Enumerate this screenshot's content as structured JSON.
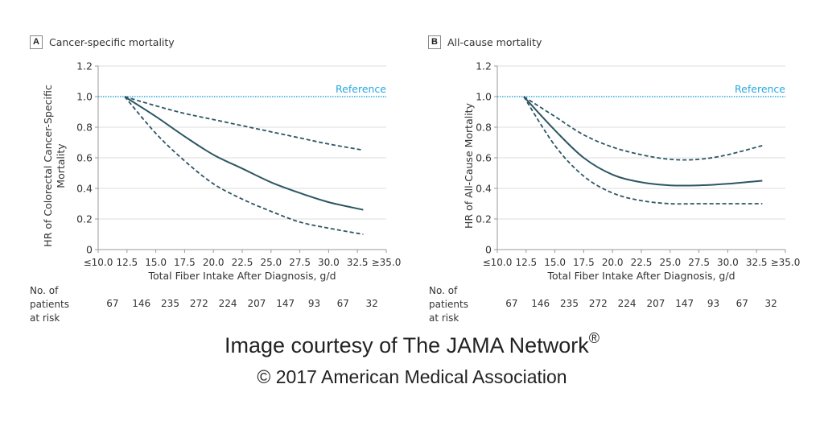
{
  "chart_data": [
    {
      "type": "line",
      "panel_letter": "A",
      "title": "Cancer-specific mortality",
      "xlabel": "Total Fiber Intake After Diagnosis, g/d",
      "ylabel": "HR of Colorectal Cancer-Specific Mortality",
      "ylabel_lines": [
        "HR of Colorectal Cancer-Specific",
        "Mortality"
      ],
      "xlim": [
        10,
        35
      ],
      "ylim": [
        0,
        1.2
      ],
      "grid": true,
      "x_ticks": [
        10,
        12.5,
        15,
        17.5,
        20,
        22.5,
        25,
        27.5,
        30,
        32.5,
        35
      ],
      "x_tick_labels": [
        "≤10.0",
        "12.5",
        "15.0",
        "17.5",
        "20.0",
        "22.5",
        "25.0",
        "27.5",
        "30.0",
        "32.5",
        "≥35.0"
      ],
      "y_ticks": [
        0,
        0.2,
        0.4,
        0.6,
        0.8,
        1.0,
        1.2
      ],
      "y_tick_labels": [
        "0",
        "0.2",
        "0.4",
        "0.6",
        "0.8",
        "1.0",
        "1.2"
      ],
      "reference": {
        "value": 1.0,
        "label": "Reference",
        "color": "#29a8e0"
      },
      "x": [
        12.3,
        15,
        17.5,
        20,
        22.5,
        25,
        27.5,
        30,
        33
      ],
      "series": [
        {
          "name": "HR",
          "style": "solid",
          "values": [
            1.0,
            0.87,
            0.74,
            0.62,
            0.53,
            0.44,
            0.37,
            0.31,
            0.26
          ]
        },
        {
          "name": "Upper 95% CI",
          "style": "dashed",
          "values": [
            1.0,
            0.94,
            0.89,
            0.85,
            0.81,
            0.77,
            0.73,
            0.69,
            0.65
          ]
        },
        {
          "name": "Lower 95% CI",
          "style": "dashed",
          "values": [
            1.0,
            0.76,
            0.58,
            0.43,
            0.33,
            0.25,
            0.18,
            0.14,
            0.1
          ]
        }
      ],
      "line_color": "#2d5663",
      "at_risk": {
        "label_lines": [
          "No. of patients",
          "at risk"
        ],
        "values": [
          "67",
          "146",
          "235",
          "272",
          "224",
          "207",
          "147",
          "93",
          "67",
          "32"
        ]
      }
    },
    {
      "type": "line",
      "panel_letter": "B",
      "title": "All-cause mortality",
      "xlabel": "Total Fiber Intake After Diagnosis, g/d",
      "ylabel": "HR of All-Cause Mortality",
      "ylabel_lines": [
        "HR of All-Cause Mortality"
      ],
      "xlim": [
        10,
        35
      ],
      "ylim": [
        0,
        1.2
      ],
      "grid": true,
      "x_ticks": [
        10,
        12.5,
        15,
        17.5,
        20,
        22.5,
        25,
        27.5,
        30,
        32.5,
        35
      ],
      "x_tick_labels": [
        "≤10.0",
        "12.5",
        "15.0",
        "17.5",
        "20.0",
        "22.5",
        "25.0",
        "27.5",
        "30.0",
        "32.5",
        "≥35.0"
      ],
      "y_ticks": [
        0,
        0.2,
        0.4,
        0.6,
        0.8,
        1.0,
        1.2
      ],
      "y_tick_labels": [
        "0",
        "0.2",
        "0.4",
        "0.6",
        "0.8",
        "1.0",
        "1.2"
      ],
      "reference": {
        "value": 1.0,
        "label": "Reference",
        "color": "#29a8e0"
      },
      "x": [
        12.3,
        15,
        17.5,
        20,
        22.5,
        25,
        27.5,
        30,
        33
      ],
      "series": [
        {
          "name": "HR",
          "style": "solid",
          "values": [
            1.0,
            0.78,
            0.6,
            0.49,
            0.44,
            0.42,
            0.42,
            0.43,
            0.45
          ]
        },
        {
          "name": "Upper 95% CI",
          "style": "dashed",
          "values": [
            1.0,
            0.87,
            0.75,
            0.67,
            0.62,
            0.59,
            0.59,
            0.62,
            0.68
          ]
        },
        {
          "name": "Lower 95% CI",
          "style": "dashed",
          "values": [
            1.0,
            0.68,
            0.48,
            0.37,
            0.32,
            0.3,
            0.3,
            0.3,
            0.3
          ]
        }
      ],
      "line_color": "#2d5663",
      "at_risk": {
        "label_lines": [
          "No. of patients",
          "at risk"
        ],
        "values": [
          "67",
          "146",
          "235",
          "272",
          "224",
          "207",
          "147",
          "93",
          "67",
          "32"
        ]
      }
    }
  ],
  "credits": {
    "line1": "Image courtesy of The JAMA Network",
    "line1_mark": "®",
    "line2": "© 2017 American Medical Association"
  }
}
